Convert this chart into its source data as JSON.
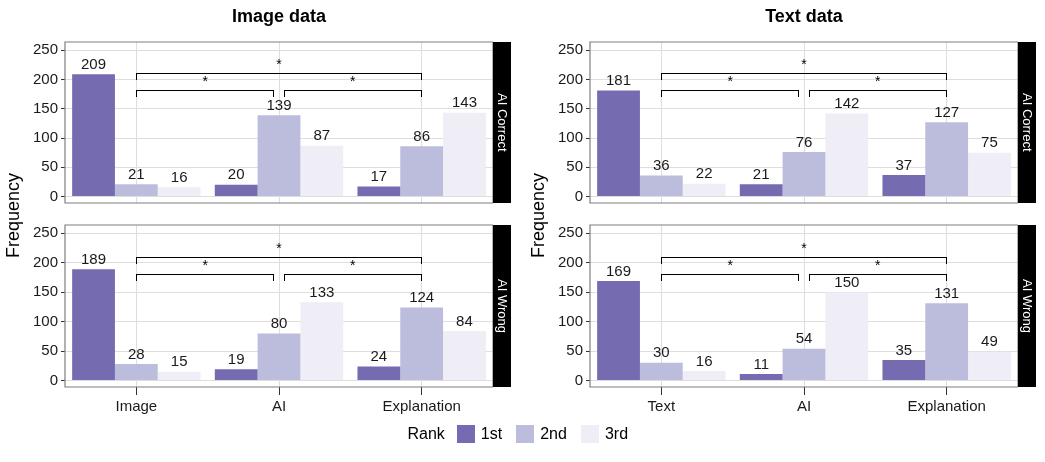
{
  "chart_data": [
    {
      "type": "bar",
      "title": "Image data",
      "subtitle": "AI Correct",
      "ylabel": "Frequency",
      "categories": [
        null,
        null,
        null
      ],
      "series": [
        {
          "name": "1st",
          "color": "#756bb1",
          "values": [
            209,
            20,
            17
          ]
        },
        {
          "name": "2nd",
          "color": "#bcbddc",
          "values": [
            21,
            139,
            86
          ]
        },
        {
          "name": "3rd",
          "color": "#efedf5",
          "values": [
            16,
            87,
            143
          ]
        }
      ],
      "ylim": [
        -11,
        264
      ],
      "yticks": [
        0,
        50,
        100,
        150,
        200,
        250
      ],
      "grid": true,
      "data_labels": true,
      "tick_labels": "y",
      "annotations": [
        "*",
        "*",
        "*"
      ],
      "legend": "bottom",
      "legend_title": "Rank"
    },
    {
      "type": "bar",
      "title": "Text data",
      "subtitle": "AI Correct",
      "ylabel": "Frequency",
      "categories": [
        null,
        null,
        null
      ],
      "series": [
        {
          "color": "#756bb1",
          "values": [
            181,
            21,
            37
          ]
        },
        {
          "color": "#bcbddc",
          "values": [
            36,
            76,
            127
          ]
        },
        {
          "color": "#efedf5",
          "values": [
            22,
            142,
            75
          ]
        }
      ],
      "ylim": [
        -11,
        264
      ],
      "yticks": [
        0,
        50,
        100,
        150,
        200,
        250
      ],
      "grid": true,
      "data_labels": true,
      "tick_labels": "y",
      "annotations": [
        "*",
        "*",
        "*"
      ]
    },
    {
      "type": "bar",
      "subtitle": "AI Wrong",
      "categories": [
        "Image",
        "AI",
        "Explanation"
      ],
      "series": [
        {
          "color": "#756bb1",
          "values": [
            189,
            19,
            24
          ]
        },
        {
          "color": "#bcbddc",
          "values": [
            28,
            80,
            124
          ]
        },
        {
          "color": "#efedf5",
          "values": [
            15,
            133,
            84
          ]
        }
      ],
      "ylim": [
        -11,
        264
      ],
      "yticks": [
        0,
        50,
        100,
        150,
        200,
        250
      ],
      "grid": true,
      "data_labels": true,
      "annotations": [
        "*",
        "*",
        "*"
      ]
    },
    {
      "type": "bar",
      "subtitle": "AI Wrong",
      "categories": [
        "Text",
        "AI",
        "Explanation"
      ],
      "series": [
        {
          "color": "#756bb1",
          "values": [
            169,
            11,
            35
          ]
        },
        {
          "color": "#bcbddc",
          "values": [
            30,
            54,
            131
          ]
        },
        {
          "color": "#efedf5",
          "values": [
            16,
            150,
            49
          ]
        }
      ],
      "ylim": [
        -11,
        264
      ],
      "yticks": [
        0,
        50,
        100,
        150,
        200,
        250
      ],
      "grid": true,
      "data_labels": true,
      "annotations": [
        "*",
        "*",
        "*"
      ]
    }
  ]
}
